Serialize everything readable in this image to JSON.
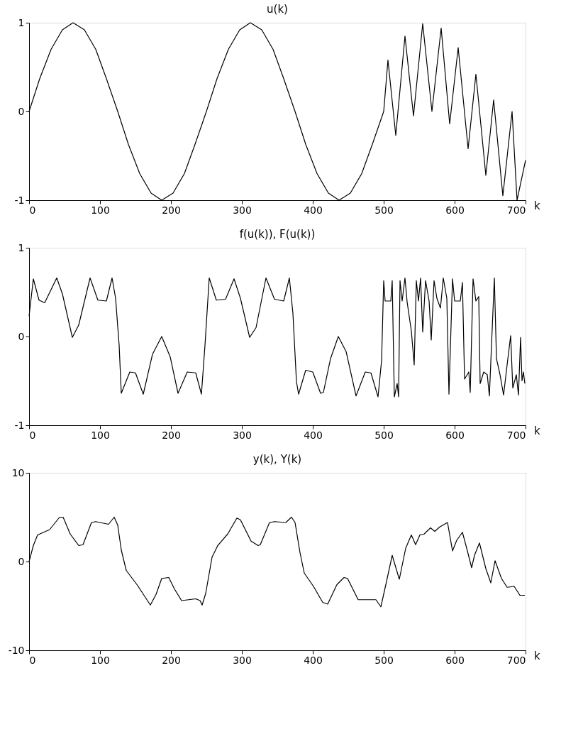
{
  "chart_data": [
    {
      "type": "line",
      "title": "u(k)",
      "xlabel": "k",
      "xlim": [
        0,
        700
      ],
      "xticks": [
        0,
        100,
        200,
        300,
        400,
        500,
        600,
        700
      ],
      "ylim": [
        -1,
        1
      ],
      "yticks": [
        -1,
        0,
        1
      ],
      "grid": false,
      "x": [
        0,
        15,
        31,
        47,
        62,
        78,
        94,
        109,
        125,
        140,
        156,
        172,
        187,
        203,
        219,
        234,
        250,
        265,
        281,
        297,
        312,
        328,
        344,
        359,
        375,
        390,
        406,
        422,
        437,
        453,
        469,
        484,
        500,
        506,
        517,
        530,
        542,
        555,
        568,
        581,
        593,
        605,
        619,
        630,
        644,
        655,
        668,
        681,
        688,
        700
      ],
      "series": [
        {
          "color": "#000000",
          "values": [
            0,
            0.37,
            0.7,
            0.92,
            1,
            0.92,
            0.7,
            0.37,
            0,
            -0.37,
            -0.7,
            -0.92,
            -1,
            -0.92,
            -0.7,
            -0.37,
            0,
            0.37,
            0.7,
            0.92,
            1,
            0.92,
            0.7,
            0.37,
            0,
            -0.37,
            -0.7,
            -0.92,
            -1,
            -0.92,
            -0.7,
            -0.37,
            0,
            0.58,
            -0.27,
            0.85,
            -0.05,
            0.99,
            0,
            0.94,
            -0.14,
            0.72,
            -0.42,
            0.42,
            -0.72,
            0.13,
            -0.95,
            0,
            -1,
            -0.55
          ]
        }
      ]
    },
    {
      "type": "line",
      "title": "f(u(k)), F(u(k))",
      "xlabel": "k",
      "xlim": [
        0,
        700
      ],
      "xticks": [
        0,
        100,
        200,
        300,
        400,
        500,
        600,
        700
      ],
      "ylim": [
        -1,
        1
      ],
      "yticks": [
        -1,
        0,
        1
      ],
      "grid": false,
      "x": [
        0,
        6,
        14,
        22,
        39,
        47,
        61,
        70,
        86,
        97,
        109,
        117,
        122,
        127,
        130,
        142,
        150,
        161,
        174,
        187,
        199,
        210,
        223,
        235,
        243,
        248,
        254,
        264,
        277,
        289,
        298,
        311,
        320,
        334,
        346,
        359,
        367,
        372,
        377,
        380,
        390,
        400,
        411,
        415,
        425,
        436,
        447,
        461,
        474,
        482,
        492,
        497,
        500,
        502,
        510,
        512,
        515,
        519,
        521,
        523,
        526,
        530,
        533,
        539,
        543,
        546,
        549,
        552,
        555,
        559,
        564,
        567,
        571,
        575,
        580,
        584,
        589,
        592,
        597,
        600,
        608,
        611,
        614,
        620,
        622,
        626,
        630,
        634,
        636,
        641,
        646,
        649,
        656,
        659,
        664,
        669,
        674,
        679,
        682,
        687,
        690,
        693,
        695,
        697,
        699
      ],
      "series": [
        {
          "color": "#000000",
          "values": [
            0.23,
            0.65,
            0.41,
            0.38,
            0.66,
            0.48,
            -0.01,
            0.13,
            0.66,
            0.41,
            0.4,
            0.66,
            0.43,
            -0.1,
            -0.64,
            -0.4,
            -0.41,
            -0.65,
            -0.2,
            0,
            -0.23,
            -0.64,
            -0.4,
            -0.41,
            -0.65,
            -0.1,
            0.66,
            0.41,
            0.42,
            0.65,
            0.43,
            -0.01,
            0.1,
            0.66,
            0.42,
            0.4,
            0.66,
            0.26,
            -0.51,
            -0.65,
            -0.38,
            -0.4,
            -0.64,
            -0.63,
            -0.25,
            0,
            -0.17,
            -0.67,
            -0.4,
            -0.41,
            -0.68,
            -0.27,
            0.63,
            0.4,
            0.4,
            0.63,
            -0.68,
            -0.53,
            -0.68,
            0.63,
            0.4,
            0.66,
            0.39,
            0.06,
            -0.32,
            0.63,
            0.4,
            0.66,
            0.05,
            0.63,
            0.4,
            -0.04,
            0.63,
            0.43,
            0.32,
            0.66,
            0.43,
            -0.65,
            0.65,
            0.4,
            0.4,
            0.61,
            -0.48,
            -0.4,
            -0.63,
            0.65,
            0.4,
            0.45,
            -0.53,
            -0.4,
            -0.43,
            -0.67,
            0.66,
            -0.25,
            -0.43,
            -0.66,
            -0.32,
            0.01,
            -0.58,
            -0.43,
            -0.66,
            -0.01,
            -0.5,
            -0.4,
            -0.53
          ]
        }
      ]
    },
    {
      "type": "line",
      "title": "y(k), Y(k)",
      "xlabel": "k",
      "xlim": [
        0,
        700
      ],
      "xticks": [
        0,
        100,
        200,
        300,
        400,
        500,
        600,
        700
      ],
      "ylim": [
        -10,
        10
      ],
      "yticks": [
        -10,
        0,
        10
      ],
      "grid": false,
      "x": [
        0,
        6,
        12,
        29,
        43,
        48,
        58,
        70,
        76,
        88,
        94,
        112,
        120,
        125,
        130,
        137,
        153,
        171,
        179,
        187,
        197,
        205,
        215,
        235,
        241,
        244,
        249,
        258,
        266,
        280,
        293,
        298,
        313,
        323,
        326,
        339,
        346,
        362,
        370,
        375,
        382,
        388,
        401,
        414,
        421,
        434,
        444,
        449,
        464,
        475,
        489,
        496,
        503,
        512,
        522,
        531,
        539,
        545,
        551,
        557,
        566,
        572,
        579,
        590,
        597,
        603,
        611,
        618,
        624,
        628,
        635,
        644,
        651,
        657,
        666,
        674,
        684,
        692,
        699
      ],
      "series": [
        {
          "color": "#000000",
          "values": [
            0,
            1.8,
            3.0,
            3.6,
            5.0,
            5.0,
            3.1,
            1.8,
            1.9,
            4.4,
            4.5,
            4.2,
            5.0,
            4.1,
            1.3,
            -1.0,
            -2.7,
            -4.9,
            -3.7,
            -1.9,
            -1.8,
            -3.1,
            -4.4,
            -4.2,
            -4.4,
            -4.9,
            -3.6,
            0.5,
            1.8,
            3.1,
            4.9,
            4.7,
            2.3,
            1.8,
            1.9,
            4.4,
            4.5,
            4.4,
            5.0,
            4.4,
            1.0,
            -1.3,
            -2.8,
            -4.6,
            -4.8,
            -2.6,
            -1.8,
            -1.9,
            -4.3,
            -4.3,
            -4.3,
            -5.1,
            -2.6,
            0.7,
            -2.0,
            1.5,
            3.0,
            1.9,
            3.0,
            3.1,
            3.8,
            3.4,
            3.9,
            4.4,
            1.2,
            2.4,
            3.3,
            1.2,
            -0.7,
            0.7,
            2.1,
            -0.8,
            -2.4,
            0.1,
            -1.9,
            -2.9,
            -2.8,
            -3.8,
            -3.8
          ]
        }
      ]
    }
  ]
}
